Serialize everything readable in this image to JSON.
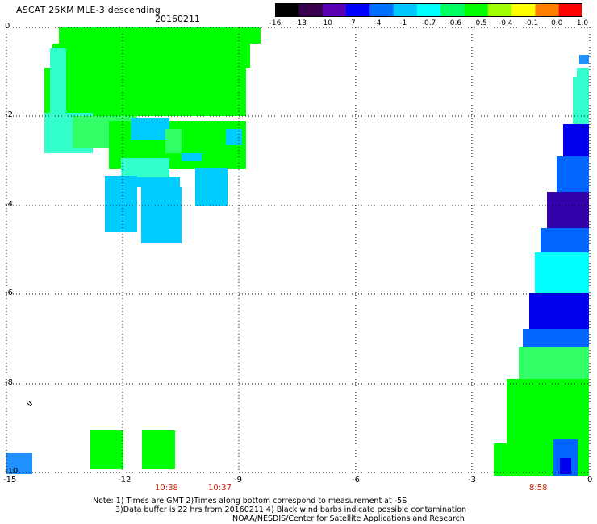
{
  "title": "ASCAT 25KM MLE-3 descending",
  "date": "20160211",
  "colorbar": {
    "labels": [
      "-16",
      "-13",
      "-10",
      "-7",
      "-4",
      "-1",
      "-0.7",
      "-0.6",
      "-0.5",
      "-0.4",
      "-0.1",
      "0.0",
      "1.0"
    ],
    "colors": [
      "#000000",
      "#3a0050",
      "#5a00b0",
      "#0000ff",
      "#0070ff",
      "#00c8ff",
      "#00ffff",
      "#00ff60",
      "#00ff00",
      "#a0ff00",
      "#ffff00",
      "#ff8000",
      "#ff0000"
    ]
  },
  "axes": {
    "x_labels": [
      "-15",
      "-12",
      "-9",
      "-6",
      "-3",
      "0"
    ],
    "y_labels": [
      "0",
      "-2",
      "-4",
      "-6",
      "-8",
      "-10"
    ],
    "x_range": [
      -15,
      0
    ],
    "y_range": [
      -10,
      0
    ],
    "grid": "dotted"
  },
  "pass_times": [
    "10:38",
    "10:37",
    "8:58"
  ],
  "notes": [
    "Note: 1) Times are GMT 2)Times along bottom correspond to measurement at -5S",
    "3)Data buffer is 22 hrs from 20160211 4) Black wind barbs indicate possible contamination",
    "NOAA/NESDIS/Center for Satellite Applications and Research"
  ],
  "swath_colors": {
    "green": "#00ff00",
    "light_green": "#33ff66",
    "cyan": "#00ffff",
    "sky": "#00ccff",
    "blue": "#0066ff",
    "dark_blue": "#0000ee",
    "purple": "#3300aa",
    "teal": "#33ffcc"
  }
}
